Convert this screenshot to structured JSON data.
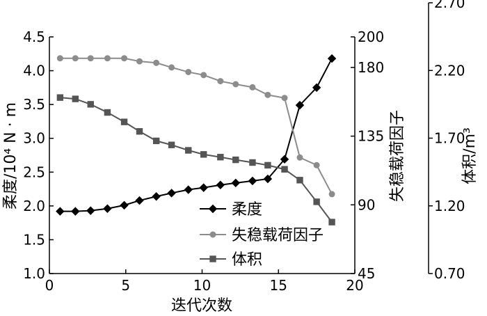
{
  "chart_data": {
    "type": "line",
    "xlabel": "迭代次数",
    "x_ticks": [
      "0",
      "5",
      "10",
      "15",
      "20"
    ],
    "xlim": [
      0,
      20
    ],
    "axes": {
      "left": {
        "label": "柔度/10⁴ N · m",
        "ylim": [
          1.0,
          4.5
        ],
        "ticks": [
          "1.0",
          "1.5",
          "2.0",
          "2.5",
          "3.0",
          "3.5",
          "4.0",
          "4.5"
        ]
      },
      "right1": {
        "label": "失稳载荷因子",
        "ylim": [
          45,
          200
        ],
        "ticks": [
          "45",
          "90",
          "135",
          "180",
          "200"
        ]
      },
      "right2": {
        "label": "体积/m³",
        "ylim": [
          0.7,
          2.7
        ],
        "ticks": [
          "0.70",
          "1.20",
          "1.70",
          "2.20",
          "2.70"
        ]
      }
    },
    "legend_position": "lower-center",
    "series": [
      {
        "name": "柔度",
        "axis": "left",
        "color": "#000000",
        "marker": "diamond",
        "x": [
          0.7,
          1.7,
          2.7,
          3.8,
          4.9,
          5.9,
          7.0,
          8.0,
          9.1,
          10.1,
          11.2,
          12.2,
          13.3,
          14.3,
          15.4,
          16.4,
          17.5,
          18.5
        ],
        "values": [
          1.92,
          1.92,
          1.93,
          1.96,
          2.01,
          2.08,
          2.14,
          2.19,
          2.24,
          2.27,
          2.31,
          2.34,
          2.37,
          2.4,
          2.69,
          3.49,
          3.75,
          4.18
        ]
      },
      {
        "name": "失稳载荷因子",
        "axis": "right1",
        "color": "#8c8c8c",
        "marker": "circle",
        "x": [
          0.7,
          1.7,
          2.7,
          3.8,
          4.9,
          5.9,
          7.0,
          8.0,
          9.1,
          10.1,
          11.2,
          12.2,
          13.3,
          14.3,
          15.4,
          16.4,
          17.5,
          18.5
        ],
        "values": [
          186,
          186,
          186,
          186,
          186,
          184,
          183,
          180,
          177,
          175,
          171,
          169,
          167,
          162,
          160,
          121,
          116,
          97
        ]
      },
      {
        "name": "体积",
        "axis": "right2",
        "color": "#555555",
        "marker": "square",
        "x": [
          0.7,
          1.7,
          2.7,
          3.8,
          4.9,
          5.9,
          7.0,
          8.0,
          9.1,
          10.1,
          11.2,
          12.2,
          13.3,
          14.3,
          15.4,
          16.4,
          17.5,
          18.5
        ],
        "values": [
          2.0,
          1.99,
          1.95,
          1.89,
          1.82,
          1.75,
          1.68,
          1.65,
          1.61,
          1.58,
          1.56,
          1.54,
          1.52,
          1.5,
          1.47,
          1.39,
          1.23,
          1.08
        ]
      }
    ]
  }
}
